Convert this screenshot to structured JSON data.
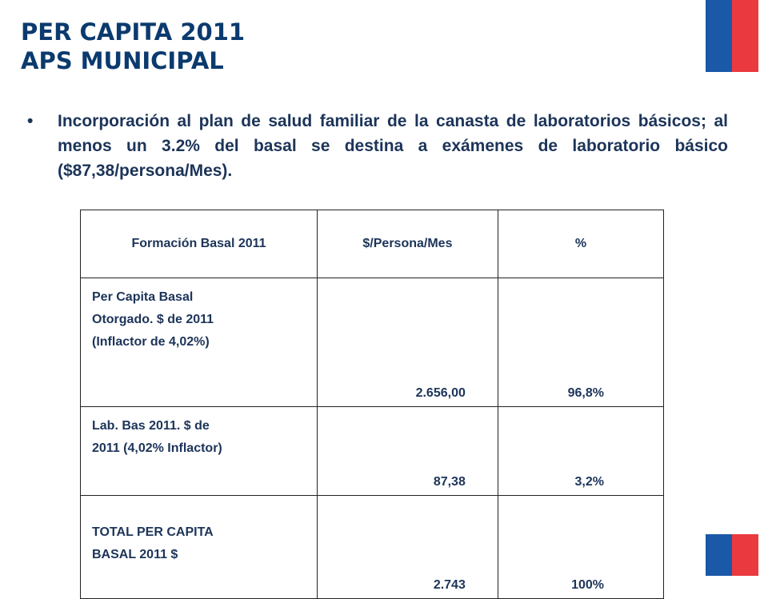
{
  "title": {
    "line1": "PER CAPITA 2011",
    "line2": "APS MUNICIPAL"
  },
  "colors": {
    "title": "#0b3a6e",
    "text": "#1c3459",
    "flag_blue": "#1a58a8",
    "flag_red": "#ea3a3f"
  },
  "bullet": {
    "marker": "•",
    "text": "Incorporación al plan de salud familiar de la canasta de laboratorios básicos; al menos un 3.2% del basal se destina a exámenes de laboratorio básico  ($87,38/persona/Mes)."
  },
  "table": {
    "headers": [
      "Formación Basal 2011",
      "$/Persona/Mes",
      "%"
    ],
    "rows": [
      {
        "label_lines": [
          "Per Capita Basal",
          "Otorgado.  $ de 2011",
          "(Inflactor de 4,02%)"
        ],
        "amount": "2.656,00",
        "percent": "96,8%"
      },
      {
        "label_lines": [
          "Lab. Bas 2011.  $ de",
          "2011 (4,02% Inflactor)"
        ],
        "amount": "87,38",
        "percent": "3,2%"
      },
      {
        "label_lines": [
          "TOTAL PER CAPITA",
          "BASAL 2011 $"
        ],
        "amount": "2.743",
        "percent": "100%"
      }
    ]
  }
}
